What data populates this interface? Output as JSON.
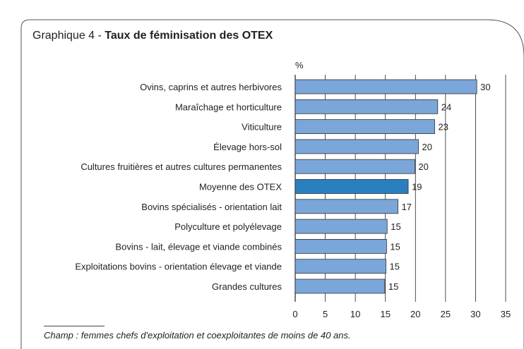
{
  "header": {
    "title_prefix": "Graphique 4 - ",
    "title_main": "Taux de féminisation des OTEX"
  },
  "footnote": "Champ : femmes chefs d'exploitation et coexploitantes de moins de 40 ans.",
  "colors": {
    "bar": "#7aa6d9",
    "bar_highlight": "#2a7fbf",
    "bar_stroke": "#333333",
    "grid": "#222222"
  },
  "chart_data": {
    "type": "bar",
    "orientation": "horizontal",
    "unit_label": "%",
    "categories": [
      "Ovins, caprins et autres herbivores",
      "Maraîchage et horticulture",
      "Viticulture",
      "Élevage hors-sol",
      "Cultures fruitières et autres cultures permanentes",
      "Moyenne des OTEX",
      "Bovins spécialisés - orientation lait",
      "Polyculture et polyélevage",
      "Bovins - lait, élevage et viande combinés",
      "Exploitations bovins - orientation élevage et viande",
      "Grandes cultures"
    ],
    "values": [
      30.2,
      23.7,
      23.2,
      20.5,
      19.9,
      18.8,
      17.1,
      15.3,
      15.2,
      15.1,
      14.9
    ],
    "value_labels": [
      "30",
      "24",
      "23",
      "20",
      "20",
      "19",
      "17",
      "15",
      "15",
      "15",
      "15"
    ],
    "highlight_index": 5,
    "xlim": [
      0,
      35
    ],
    "xticks": [
      0,
      5,
      10,
      15,
      20,
      25,
      30,
      35
    ],
    "grid": "vertical",
    "xlabel": "",
    "ylabel": ""
  }
}
